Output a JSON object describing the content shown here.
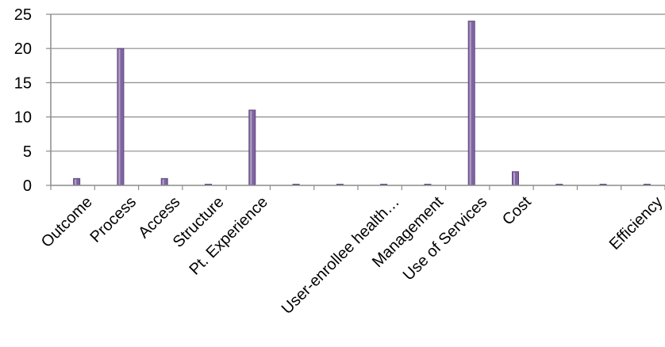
{
  "chart_data": {
    "type": "bar",
    "title": "",
    "xlabel": "",
    "ylabel": "",
    "ylim": [
      0,
      25
    ],
    "yticks": [
      0,
      5,
      10,
      15,
      20,
      25
    ],
    "grid": true,
    "legend": "none",
    "categories": [
      "Outcome",
      "Process",
      "Access",
      "Structure",
      "Pt. Experience",
      "",
      "",
      "User-enrollee health…",
      "Management",
      "Use of Services",
      "Cost",
      "",
      "",
      "Efficiency"
    ],
    "values": [
      1,
      20,
      1,
      0,
      11,
      0,
      0,
      0,
      0,
      24,
      2,
      0,
      0,
      0
    ],
    "bar_color": "#8064a2"
  }
}
